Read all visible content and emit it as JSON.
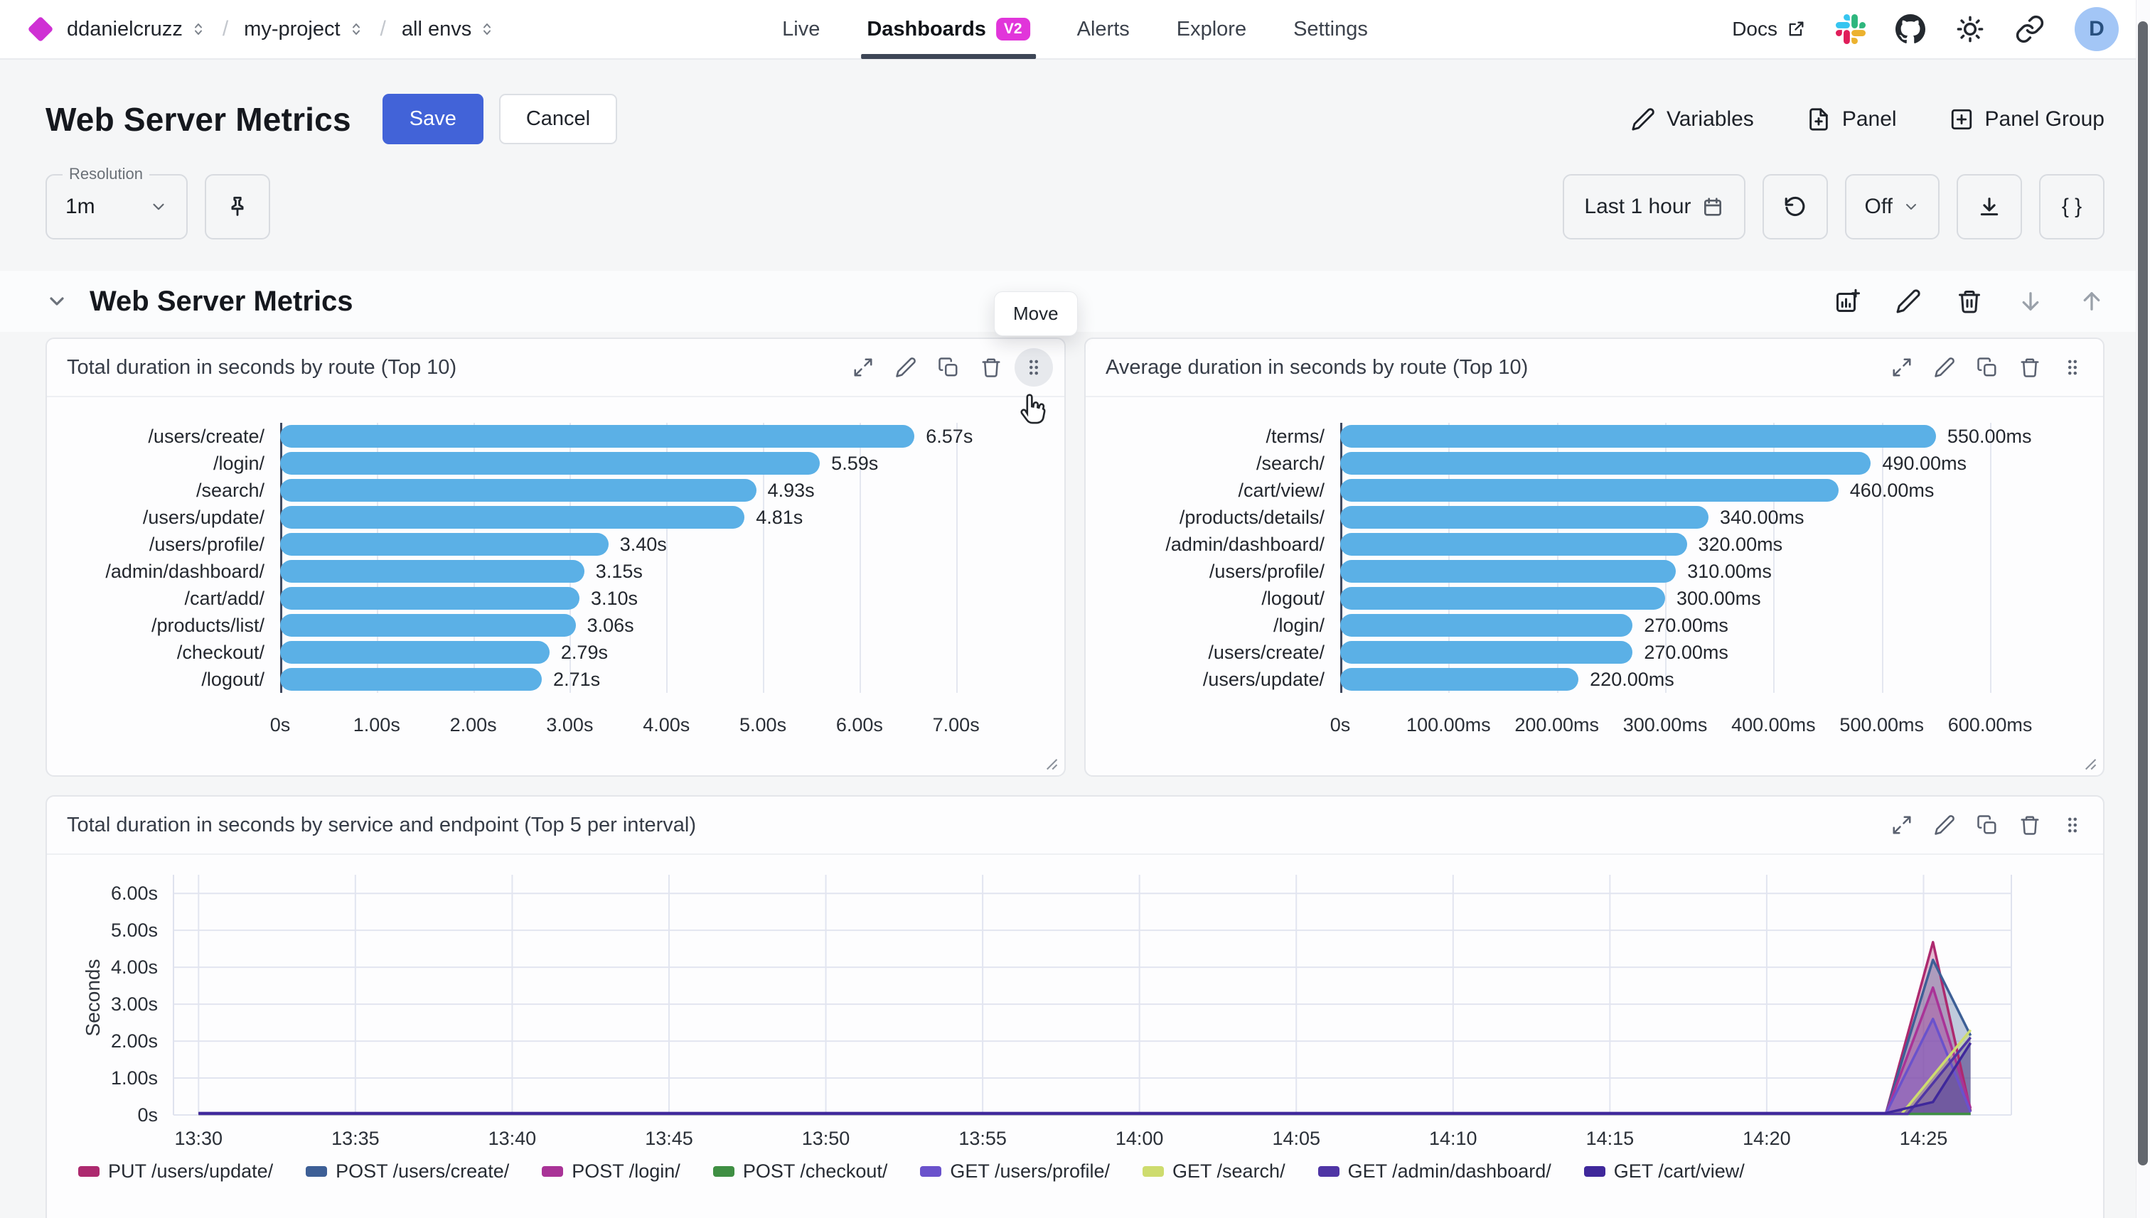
{
  "nav": {
    "breadcrumb": [
      {
        "label": "ddanielcruzz"
      },
      {
        "label": "my-project"
      },
      {
        "label": "all envs"
      }
    ],
    "tabs": [
      {
        "label": "Live"
      },
      {
        "label": "Dashboards",
        "badge": "V2",
        "active": true
      },
      {
        "label": "Alerts"
      },
      {
        "label": "Explore"
      },
      {
        "label": "Settings"
      }
    ],
    "docs_label": "Docs",
    "avatar_initial": "D"
  },
  "header": {
    "title": "Web Server Metrics",
    "save_label": "Save",
    "cancel_label": "Cancel",
    "variables_label": "Variables",
    "panel_label": "Panel",
    "panel_group_label": "Panel Group"
  },
  "toolbar": {
    "resolution_label": "Resolution",
    "resolution_value": "1m",
    "time_range": "Last 1 hour",
    "auto_refresh": "Off",
    "braces_label": "{ }"
  },
  "section": {
    "title": "Web Server Metrics",
    "move_tooltip": "Move"
  },
  "colors": {
    "accent_blue": "#4263d8",
    "bar_blue": "#5bb0e6",
    "badge_magenta": "#e135da",
    "logo_magenta": "#cf30d4"
  },
  "chart_data": [
    {
      "type": "bar",
      "orientation": "horizontal",
      "title": "Total duration in seconds by route (Top 10)",
      "categories": [
        "/users/create/",
        "/login/",
        "/search/",
        "/users/update/",
        "/users/profile/",
        "/admin/dashboard/",
        "/cart/add/",
        "/products/list/",
        "/checkout/",
        "/logout/"
      ],
      "values": [
        6.57,
        5.59,
        4.93,
        4.81,
        3.4,
        3.15,
        3.1,
        3.06,
        2.79,
        2.71
      ],
      "value_labels": [
        "6.57s",
        "5.59s",
        "4.93s",
        "4.81s",
        "3.40s",
        "3.15s",
        "3.10s",
        "3.06s",
        "2.79s",
        "2.71s"
      ],
      "x_ticks": [
        {
          "v": 0,
          "label": "0s"
        },
        {
          "v": 1,
          "label": "1.00s"
        },
        {
          "v": 2,
          "label": "2.00s"
        },
        {
          "v": 3,
          "label": "3.00s"
        },
        {
          "v": 4,
          "label": "4.00s"
        },
        {
          "v": 5,
          "label": "5.00s"
        },
        {
          "v": 6,
          "label": "6.00s"
        },
        {
          "v": 7,
          "label": "7.00s"
        }
      ],
      "x_max": 7.4,
      "unit": "s",
      "bar_color": "#5bb0e6"
    },
    {
      "type": "bar",
      "orientation": "horizontal",
      "title": "Average duration in seconds by route (Top 10)",
      "categories": [
        "/terms/",
        "/search/",
        "/cart/view/",
        "/products/details/",
        "/admin/dashboard/",
        "/users/profile/",
        "/logout/",
        "/login/",
        "/users/create/",
        "/users/update/"
      ],
      "values": [
        550,
        490,
        460,
        340,
        320,
        310,
        300,
        270,
        270,
        220
      ],
      "value_labels": [
        "550.00ms",
        "490.00ms",
        "460.00ms",
        "340.00ms",
        "320.00ms",
        "310.00ms",
        "300.00ms",
        "270.00ms",
        "270.00ms",
        "220.00ms"
      ],
      "x_ticks": [
        {
          "v": 0,
          "label": "0s"
        },
        {
          "v": 100,
          "label": "100.00ms"
        },
        {
          "v": 200,
          "label": "200.00ms"
        },
        {
          "v": 300,
          "label": "300.00ms"
        },
        {
          "v": 400,
          "label": "400.00ms"
        },
        {
          "v": 500,
          "label": "500.00ms"
        },
        {
          "v": 600,
          "label": "600.00ms"
        }
      ],
      "x_max": 640,
      "unit": "ms",
      "bar_color": "#5bb0e6"
    },
    {
      "type": "area",
      "title": "Total duration in seconds by service and endpoint (Top 5 per interval)",
      "ylabel": "Seconds",
      "y_ticks": [
        {
          "v": 0,
          "label": "0s"
        },
        {
          "v": 1,
          "label": "1.00s"
        },
        {
          "v": 2,
          "label": "2.00s"
        },
        {
          "v": 3,
          "label": "3.00s"
        },
        {
          "v": 4,
          "label": "4.00s"
        },
        {
          "v": 5,
          "label": "5.00s"
        },
        {
          "v": 6,
          "label": "6.00s"
        }
      ],
      "y_max": 6.35,
      "x_ticks": [
        {
          "v": 0,
          "label": "13:30"
        },
        {
          "v": 5,
          "label": "13:35"
        },
        {
          "v": 10,
          "label": "13:40"
        },
        {
          "v": 15,
          "label": "13:45"
        },
        {
          "v": 20,
          "label": "13:50"
        },
        {
          "v": 25,
          "label": "13:55"
        },
        {
          "v": 30,
          "label": "14:00"
        },
        {
          "v": 35,
          "label": "14:05"
        },
        {
          "v": 40,
          "label": "14:10"
        },
        {
          "v": 45,
          "label": "14:15"
        },
        {
          "v": 50,
          "label": "14:20"
        },
        {
          "v": 55,
          "label": "14:25"
        }
      ],
      "x_range": [
        -0.8,
        57.8
      ],
      "series": [
        {
          "name": "PUT /users/update/",
          "color": "#ad2a6f",
          "points": [
            [
              0,
              0.04
            ],
            [
              53.8,
              0.04
            ],
            [
              55.3,
              4.68
            ],
            [
              56.5,
              0.1
            ]
          ]
        },
        {
          "name": "POST /users/create/",
          "color": "#3d5f96",
          "points": [
            [
              0,
              0.04
            ],
            [
              53.8,
              0.04
            ],
            [
              55.3,
              4.2
            ],
            [
              56.5,
              2.15
            ]
          ]
        },
        {
          "name": "POST /login/",
          "color": "#a93397",
          "points": [
            [
              0,
              0.04
            ],
            [
              53.8,
              0.04
            ],
            [
              55.3,
              3.45
            ],
            [
              56.5,
              0.18
            ]
          ]
        },
        {
          "name": "POST /checkout/",
          "color": "#3f8f43",
          "points": [
            [
              0,
              0.03
            ],
            [
              56.5,
              0.03
            ]
          ]
        },
        {
          "name": "GET /users/profile/",
          "color": "#6a52cc",
          "points": [
            [
              0,
              0.04
            ],
            [
              53.8,
              0.04
            ],
            [
              55.3,
              2.6
            ],
            [
              56.5,
              0.08
            ]
          ]
        },
        {
          "name": "GET /search/",
          "color": "#cedc6e",
          "points": [
            [
              0,
              0.03
            ],
            [
              54.3,
              0.03
            ],
            [
              56.5,
              2.3
            ]
          ]
        },
        {
          "name": "GET /admin/dashboard/",
          "color": "#4f35a5",
          "points": [
            [
              0,
              0.03
            ],
            [
              54.5,
              0.03
            ],
            [
              56.5,
              2.1
            ]
          ]
        },
        {
          "name": "GET /cart/view/",
          "color": "#3f289b",
          "points": [
            [
              0,
              0.05
            ],
            [
              53.8,
              0.05
            ],
            [
              55.3,
              0.35
            ],
            [
              56.5,
              1.95
            ]
          ]
        }
      ]
    }
  ]
}
